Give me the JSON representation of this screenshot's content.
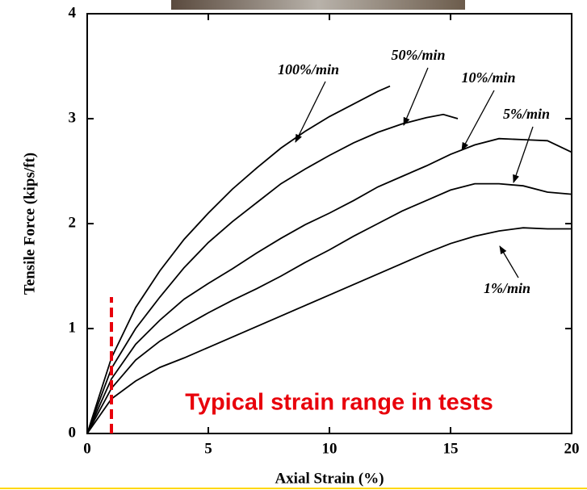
{
  "chart_data": {
    "type": "line",
    "xlabel": "Axial Strain (%)",
    "ylabel": "Tensile Force (kips/ft)",
    "xlim": [
      0,
      20
    ],
    "xticks": [
      0,
      5,
      10,
      15,
      20
    ],
    "ylim": [
      0,
      4
    ],
    "yticks": [
      0,
      1,
      2,
      3,
      4
    ],
    "series": [
      {
        "name": "100%/min",
        "color": "#000000",
        "x": [
          0,
          1,
          2,
          3,
          4,
          5,
          6,
          7,
          8,
          9,
          10,
          11,
          12,
          12.5
        ],
        "values": [
          0,
          0.72,
          1.2,
          1.55,
          1.85,
          2.1,
          2.33,
          2.53,
          2.72,
          2.88,
          3.02,
          3.14,
          3.26,
          3.31
        ]
      },
      {
        "name": "50%/min",
        "color": "#000000",
        "x": [
          0,
          1,
          2,
          3,
          4,
          5,
          6,
          7,
          8,
          9,
          10,
          11,
          12,
          13,
          14,
          14.7,
          15.3
        ],
        "values": [
          0,
          0.62,
          1.0,
          1.3,
          1.58,
          1.82,
          2.02,
          2.2,
          2.38,
          2.52,
          2.65,
          2.77,
          2.87,
          2.95,
          3.01,
          3.04,
          3.0
        ]
      },
      {
        "name": "10%/min",
        "color": "#000000",
        "x": [
          0,
          1,
          2,
          3,
          4,
          5,
          6,
          7,
          8,
          9,
          10,
          11,
          12,
          13,
          14,
          15,
          16,
          17,
          18,
          19,
          20
        ],
        "values": [
          0,
          0.52,
          0.85,
          1.08,
          1.28,
          1.43,
          1.57,
          1.72,
          1.86,
          1.99,
          2.1,
          2.22,
          2.35,
          2.45,
          2.55,
          2.66,
          2.75,
          2.81,
          2.8,
          2.79,
          2.68
        ]
      },
      {
        "name": "5%/min",
        "color": "#000000",
        "x": [
          0,
          1,
          2,
          3,
          4,
          5,
          6,
          7,
          8,
          9,
          10,
          11,
          12,
          13,
          14,
          15,
          16,
          17,
          18,
          19,
          20
        ],
        "values": [
          0,
          0.43,
          0.7,
          0.88,
          1.02,
          1.15,
          1.27,
          1.38,
          1.5,
          1.63,
          1.75,
          1.88,
          2.0,
          2.12,
          2.22,
          2.32,
          2.38,
          2.38,
          2.36,
          2.3,
          2.28
        ]
      },
      {
        "name": "1%/min",
        "color": "#000000",
        "x": [
          0,
          1,
          2,
          3,
          4,
          5,
          6,
          7,
          8,
          9,
          10,
          11,
          12,
          13,
          14,
          15,
          16,
          17,
          18,
          19,
          20
        ],
        "values": [
          0,
          0.33,
          0.5,
          0.63,
          0.72,
          0.82,
          0.92,
          1.02,
          1.12,
          1.22,
          1.32,
          1.42,
          1.52,
          1.62,
          1.72,
          1.81,
          1.88,
          1.93,
          1.96,
          1.95,
          1.95
        ]
      }
    ],
    "reference_line": {
      "x": 1,
      "y_top": 1.3,
      "color": "#e8000b"
    },
    "annotation": "Typical strain range in tests"
  }
}
